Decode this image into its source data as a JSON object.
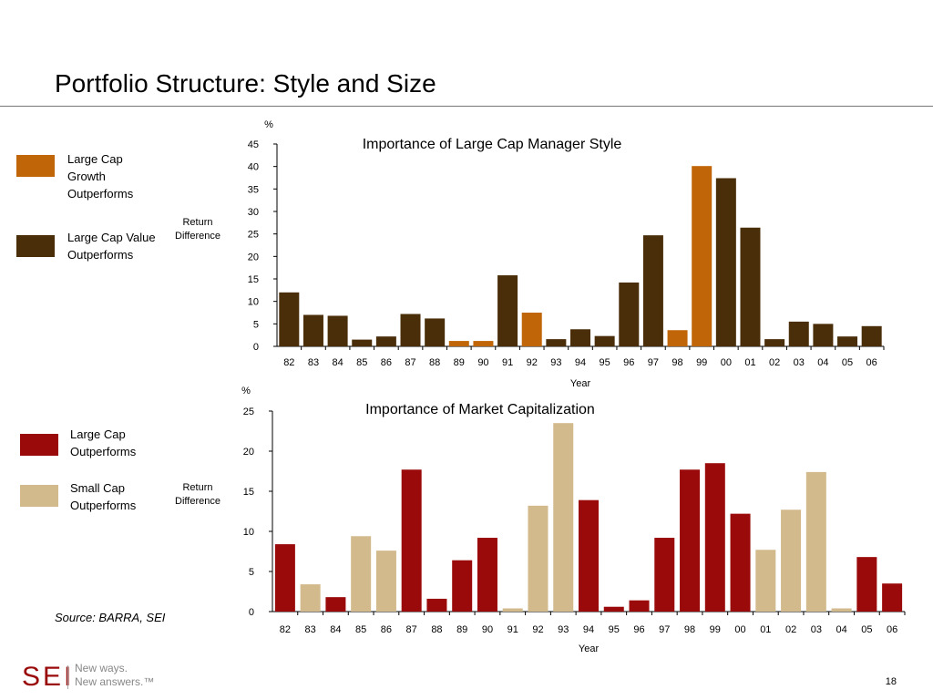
{
  "slide": {
    "title": "Portfolio Structure: Style and Size",
    "source": "Source: BARRA,  SEI",
    "logo_text": "SEI",
    "tagline": "New ways.\nNew answers.™",
    "page_number": "18"
  },
  "legends": {
    "chart1": [
      {
        "label": "Large Cap\nGrowth\nOutperforms",
        "color": "#c06608"
      },
      {
        "label": "Large Cap Value\nOutperforms",
        "color": "#4a2e0a"
      }
    ],
    "chart2": [
      {
        "label": "Large Cap\nOutperforms",
        "color": "#9b0a0a"
      },
      {
        "label": "Small Cap\nOutperforms",
        "color": "#d2ba8c"
      }
    ]
  },
  "chart_data": [
    {
      "type": "bar",
      "title": "Importance of Large Cap Manager Style",
      "unit": "%",
      "ylabel": "Return\nDifference",
      "xlabel": "Year",
      "ylim": [
        0,
        45
      ],
      "yticks": [
        0,
        5,
        10,
        15,
        20,
        25,
        30,
        35,
        40,
        45
      ],
      "categories": [
        "82",
        "83",
        "84",
        "85",
        "86",
        "87",
        "88",
        "89",
        "90",
        "91",
        "92",
        "93",
        "94",
        "95",
        "96",
        "97",
        "98",
        "99",
        "00",
        "01",
        "02",
        "03",
        "04",
        "05",
        "06"
      ],
      "values": [
        12,
        7,
        6.8,
        1.5,
        2.2,
        7.2,
        6.2,
        1.2,
        1.2,
        15.8,
        7.5,
        1.6,
        3.8,
        2.3,
        14.2,
        24.7,
        3.6,
        40.1,
        37.4,
        26.4,
        1.6,
        5.5,
        5,
        2.2,
        4.5
      ],
      "series_colors": [
        "#4a2e0a",
        "#4a2e0a",
        "#4a2e0a",
        "#4a2e0a",
        "#4a2e0a",
        "#4a2e0a",
        "#4a2e0a",
        "#c06608",
        "#c06608",
        "#4a2e0a",
        "#c06608",
        "#4a2e0a",
        "#4a2e0a",
        "#4a2e0a",
        "#4a2e0a",
        "#4a2e0a",
        "#c06608",
        "#c06608",
        "#4a2e0a",
        "#4a2e0a",
        "#4a2e0a",
        "#4a2e0a",
        "#4a2e0a",
        "#4a2e0a",
        "#4a2e0a"
      ]
    },
    {
      "type": "bar",
      "title": "Importance of Market Capitalization",
      "unit": "%",
      "ylabel": "Return\nDifference",
      "xlabel": "Year",
      "ylim": [
        0,
        25
      ],
      "yticks": [
        0,
        5,
        10,
        15,
        20,
        25
      ],
      "categories": [
        "82",
        "83",
        "84",
        "85",
        "86",
        "87",
        "88",
        "89",
        "90",
        "91",
        "92",
        "93",
        "94",
        "95",
        "96",
        "97",
        "98",
        "99",
        "00",
        "01",
        "02",
        "03",
        "04",
        "05",
        "06"
      ],
      "values": [
        8.4,
        3.4,
        1.8,
        9.4,
        7.6,
        17.7,
        1.6,
        6.4,
        9.2,
        0.4,
        13.2,
        23.5,
        13.9,
        0.6,
        1.4,
        9.2,
        17.7,
        18.5,
        12.2,
        7.7,
        12.7,
        17.4,
        0.4,
        6.8,
        3.5
      ],
      "series_colors": [
        "#9b0a0a",
        "#d2ba8c",
        "#9b0a0a",
        "#d2ba8c",
        "#d2ba8c",
        "#9b0a0a",
        "#9b0a0a",
        "#9b0a0a",
        "#9b0a0a",
        "#d2ba8c",
        "#d2ba8c",
        "#d2ba8c",
        "#9b0a0a",
        "#9b0a0a",
        "#9b0a0a",
        "#9b0a0a",
        "#9b0a0a",
        "#9b0a0a",
        "#9b0a0a",
        "#d2ba8c",
        "#d2ba8c",
        "#d2ba8c",
        "#d2ba8c",
        "#9b0a0a",
        "#9b0a0a"
      ]
    }
  ]
}
